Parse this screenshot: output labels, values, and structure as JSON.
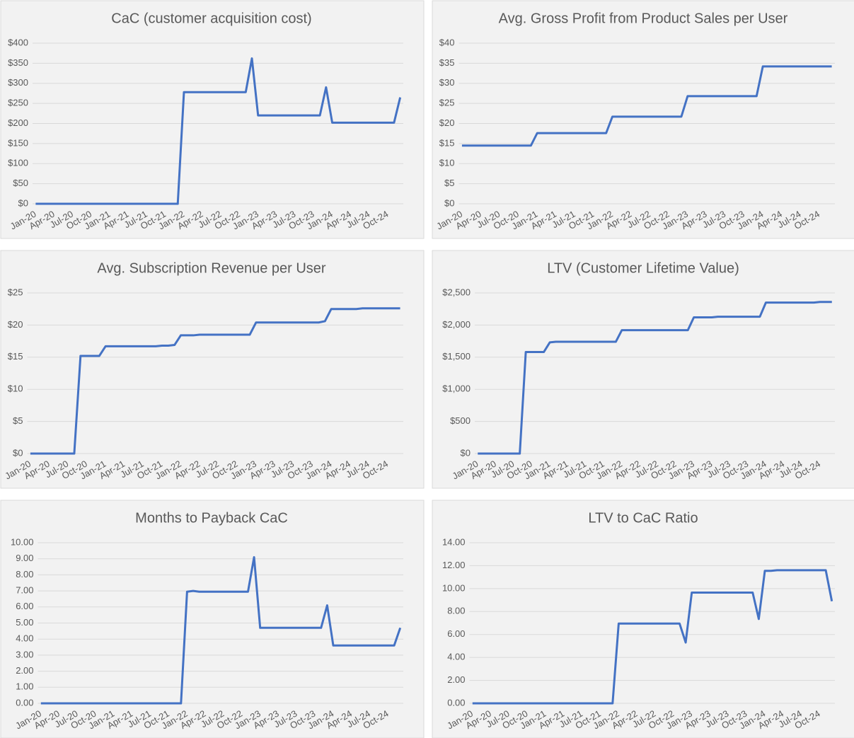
{
  "chart_data": [
    {
      "type": "line",
      "title": "CaC (customer acquisition cost)",
      "color": "#4472c4",
      "grid": true,
      "categories": [
        "Jan-20",
        null,
        null,
        "Apr-20",
        null,
        null,
        "Jul-20",
        null,
        null,
        "Oct-20",
        null,
        null,
        "Jan-21",
        null,
        null,
        "Apr-21",
        null,
        null,
        "Jul-21",
        null,
        null,
        "Oct-21",
        null,
        null,
        "Jan-22",
        null,
        null,
        "Apr-22",
        null,
        null,
        "Jul-22",
        null,
        null,
        "Oct-22",
        null,
        null,
        "Jan-23",
        null,
        null,
        "Apr-23",
        null,
        null,
        "Jul-23",
        null,
        null,
        "Oct-23",
        null,
        null,
        "Jan-24",
        null,
        null,
        "Apr-24",
        null,
        null,
        "Jul-24",
        null,
        null,
        "Oct-24",
        null,
        null
      ],
      "values": [
        0,
        0,
        0,
        0,
        0,
        0,
        0,
        0,
        0,
        0,
        0,
        0,
        0,
        0,
        0,
        0,
        0,
        0,
        0,
        0,
        0,
        0,
        0,
        0,
        278,
        278,
        278,
        278,
        278,
        278,
        278,
        278,
        278,
        278,
        278,
        362,
        220,
        220,
        220,
        220,
        220,
        220,
        220,
        220,
        220,
        220,
        220,
        290,
        202,
        202,
        202,
        202,
        202,
        202,
        202,
        202,
        202,
        202,
        202,
        265
      ],
      "ylim": [
        0,
        400
      ],
      "yticks": [
        {
          "value": 0,
          "label": "$0"
        },
        {
          "value": 50,
          "label": "$50"
        },
        {
          "value": 100,
          "label": "$100"
        },
        {
          "value": 150,
          "label": "$150"
        },
        {
          "value": 200,
          "label": "$200"
        },
        {
          "value": 250,
          "label": "$250"
        },
        {
          "value": 300,
          "label": "$300"
        },
        {
          "value": 350,
          "label": "$350"
        },
        {
          "value": 400,
          "label": "$400"
        }
      ]
    },
    {
      "type": "line",
      "title": "Avg. Gross Profit from Product Sales per User",
      "color": "#4472c4",
      "grid": true,
      "categories": [
        "Jan-20",
        null,
        null,
        "Apr-20",
        null,
        null,
        "Jul-20",
        null,
        null,
        "Oct-20",
        null,
        null,
        "Jan-21",
        null,
        null,
        "Apr-21",
        null,
        null,
        "Jul-21",
        null,
        null,
        "Oct-21",
        null,
        null,
        "Jan-22",
        null,
        null,
        "Apr-22",
        null,
        null,
        "Jul-22",
        null,
        null,
        "Oct-22",
        null,
        null,
        "Jan-23",
        null,
        null,
        "Apr-23",
        null,
        null,
        "Jul-23",
        null,
        null,
        "Oct-23",
        null,
        null,
        "Jan-24",
        null,
        null,
        "Apr-24",
        null,
        null,
        "Jul-24",
        null,
        null,
        "Oct-24",
        null,
        null
      ],
      "values": [
        14.5,
        14.5,
        14.5,
        14.5,
        14.5,
        14.5,
        14.5,
        14.5,
        14.5,
        14.5,
        14.5,
        14.5,
        17.6,
        17.6,
        17.6,
        17.6,
        17.6,
        17.6,
        17.6,
        17.6,
        17.6,
        17.6,
        17.6,
        17.6,
        21.7,
        21.7,
        21.7,
        21.7,
        21.7,
        21.7,
        21.7,
        21.7,
        21.7,
        21.7,
        21.7,
        21.7,
        26.8,
        26.8,
        26.8,
        26.8,
        26.8,
        26.8,
        26.8,
        26.8,
        26.8,
        26.8,
        26.8,
        26.8,
        34.2,
        34.2,
        34.2,
        34.2,
        34.2,
        34.2,
        34.2,
        34.2,
        34.2,
        34.2,
        34.2,
        34.2
      ],
      "ylim": [
        0,
        40
      ],
      "yticks": [
        {
          "value": 0,
          "label": "$0"
        },
        {
          "value": 5,
          "label": "$5"
        },
        {
          "value": 10,
          "label": "$10"
        },
        {
          "value": 15,
          "label": "$15"
        },
        {
          "value": 20,
          "label": "$20"
        },
        {
          "value": 25,
          "label": "$25"
        },
        {
          "value": 30,
          "label": "$30"
        },
        {
          "value": 35,
          "label": "$35"
        },
        {
          "value": 40,
          "label": "$40"
        }
      ]
    },
    {
      "type": "line",
      "title": "Avg. Subscription Revenue per User",
      "color": "#4472c4",
      "grid": true,
      "categories": [
        "Jan-20",
        null,
        null,
        "Apr-20",
        null,
        null,
        "Jul-20",
        null,
        null,
        "Oct-20",
        null,
        null,
        "Jan-21",
        null,
        null,
        "Apr-21",
        null,
        null,
        "Jul-21",
        null,
        null,
        "Oct-21",
        null,
        null,
        "Jan-22",
        null,
        null,
        "Apr-22",
        null,
        null,
        "Jul-22",
        null,
        null,
        "Oct-22",
        null,
        null,
        "Jan-23",
        null,
        null,
        "Apr-23",
        null,
        null,
        "Jul-23",
        null,
        null,
        "Oct-23",
        null,
        null,
        "Jan-24",
        null,
        null,
        "Apr-24",
        null,
        null,
        "Jul-24",
        null,
        null,
        "Oct-24",
        null,
        null
      ],
      "values": [
        0,
        0,
        0,
        0,
        0,
        0,
        0,
        0,
        15.2,
        15.2,
        15.2,
        15.2,
        16.7,
        16.7,
        16.7,
        16.7,
        16.7,
        16.7,
        16.7,
        16.7,
        16.7,
        16.8,
        16.8,
        16.9,
        18.4,
        18.4,
        18.4,
        18.5,
        18.5,
        18.5,
        18.5,
        18.5,
        18.5,
        18.5,
        18.5,
        18.5,
        20.4,
        20.4,
        20.4,
        20.4,
        20.4,
        20.4,
        20.4,
        20.4,
        20.4,
        20.4,
        20.4,
        20.6,
        22.5,
        22.5,
        22.5,
        22.5,
        22.5,
        22.6,
        22.6,
        22.6,
        22.6,
        22.6,
        22.6,
        22.6
      ],
      "ylim": [
        0,
        25
      ],
      "yticks": [
        {
          "value": 0,
          "label": "$0"
        },
        {
          "value": 5,
          "label": "$5"
        },
        {
          "value": 10,
          "label": "$10"
        },
        {
          "value": 15,
          "label": "$15"
        },
        {
          "value": 20,
          "label": "$20"
        },
        {
          "value": 25,
          "label": "$25"
        }
      ]
    },
    {
      "type": "line",
      "title": "LTV (Customer Lifetime Value)",
      "color": "#4472c4",
      "grid": true,
      "categories": [
        "Jan-20",
        null,
        null,
        "Apr-20",
        null,
        null,
        "Jul-20",
        null,
        null,
        "Oct-20",
        null,
        null,
        "Jan-21",
        null,
        null,
        "Apr-21",
        null,
        null,
        "Jul-21",
        null,
        null,
        "Oct-21",
        null,
        null,
        "Jan-22",
        null,
        null,
        "Apr-22",
        null,
        null,
        "Jul-22",
        null,
        null,
        "Oct-22",
        null,
        null,
        "Jan-23",
        null,
        null,
        "Apr-23",
        null,
        null,
        "Jul-23",
        null,
        null,
        "Oct-23",
        null,
        null,
        "Jan-24",
        null,
        null,
        "Apr-24",
        null,
        null,
        "Jul-24",
        null,
        null,
        "Oct-24",
        null,
        null
      ],
      "values": [
        0,
        0,
        0,
        0,
        0,
        0,
        0,
        0,
        1580,
        1580,
        1580,
        1580,
        1730,
        1740,
        1740,
        1740,
        1740,
        1740,
        1740,
        1740,
        1740,
        1740,
        1740,
        1740,
        1920,
        1920,
        1920,
        1920,
        1920,
        1920,
        1920,
        1920,
        1920,
        1920,
        1920,
        1920,
        2120,
        2120,
        2120,
        2120,
        2130,
        2130,
        2130,
        2130,
        2130,
        2130,
        2130,
        2130,
        2350,
        2350,
        2350,
        2350,
        2350,
        2350,
        2350,
        2350,
        2350,
        2360,
        2360,
        2360
      ],
      "ylim": [
        0,
        2500
      ],
      "yticks": [
        {
          "value": 0,
          "label": "$0"
        },
        {
          "value": 500,
          "label": "$500"
        },
        {
          "value": 1000,
          "label": "$1,000"
        },
        {
          "value": 1500,
          "label": "$1,500"
        },
        {
          "value": 2000,
          "label": "$2,000"
        },
        {
          "value": 2500,
          "label": "$2,500"
        }
      ]
    },
    {
      "type": "line",
      "title": "Months to Payback CaC",
      "color": "#4472c4",
      "grid": true,
      "categories": [
        "Jan-20",
        null,
        null,
        "Apr-20",
        null,
        null,
        "Jul-20",
        null,
        null,
        "Oct-20",
        null,
        null,
        "Jan-21",
        null,
        null,
        "Apr-21",
        null,
        null,
        "Jul-21",
        null,
        null,
        "Oct-21",
        null,
        null,
        "Jan-22",
        null,
        null,
        "Apr-22",
        null,
        null,
        "Jul-22",
        null,
        null,
        "Oct-22",
        null,
        null,
        "Jan-23",
        null,
        null,
        "Apr-23",
        null,
        null,
        "Jul-23",
        null,
        null,
        "Oct-23",
        null,
        null,
        "Jan-24",
        null,
        null,
        "Apr-24",
        null,
        null,
        "Jul-24",
        null,
        null,
        "Oct-24",
        null,
        null
      ],
      "values": [
        0,
        0,
        0,
        0,
        0,
        0,
        0,
        0,
        0,
        0,
        0,
        0,
        0,
        0,
        0,
        0,
        0,
        0,
        0,
        0,
        0,
        0,
        0,
        0,
        6.95,
        7.0,
        6.95,
        6.95,
        6.95,
        6.95,
        6.95,
        6.95,
        6.95,
        6.95,
        6.95,
        9.1,
        4.7,
        4.7,
        4.7,
        4.7,
        4.7,
        4.7,
        4.7,
        4.7,
        4.7,
        4.7,
        4.7,
        6.1,
        3.6,
        3.6,
        3.6,
        3.6,
        3.6,
        3.6,
        3.6,
        3.6,
        3.6,
        3.6,
        3.6,
        4.7
      ],
      "ylim": [
        0,
        10
      ],
      "yticks": [
        {
          "value": 0,
          "label": "0.00"
        },
        {
          "value": 1,
          "label": "1.00"
        },
        {
          "value": 2,
          "label": "2.00"
        },
        {
          "value": 3,
          "label": "3.00"
        },
        {
          "value": 4,
          "label": "4.00"
        },
        {
          "value": 5,
          "label": "5.00"
        },
        {
          "value": 6,
          "label": "6.00"
        },
        {
          "value": 7,
          "label": "7.00"
        },
        {
          "value": 8,
          "label": "8.00"
        },
        {
          "value": 9,
          "label": "9.00"
        },
        {
          "value": 10,
          "label": "10.00"
        }
      ]
    },
    {
      "type": "line",
      "title": "LTV to CaC Ratio",
      "color": "#4472c4",
      "grid": true,
      "categories": [
        "Jan-20",
        null,
        null,
        "Apr-20",
        null,
        null,
        "Jul-20",
        null,
        null,
        "Oct-20",
        null,
        null,
        "Jan-21",
        null,
        null,
        "Apr-21",
        null,
        null,
        "Jul-21",
        null,
        null,
        "Oct-21",
        null,
        null,
        "Jan-22",
        null,
        null,
        "Apr-22",
        null,
        null,
        "Jul-22",
        null,
        null,
        "Oct-22",
        null,
        null,
        "Jan-23",
        null,
        null,
        "Apr-23",
        null,
        null,
        "Jul-23",
        null,
        null,
        "Oct-23",
        null,
        null,
        "Jan-24",
        null,
        null,
        "Apr-24",
        null,
        null,
        "Jul-24",
        null,
        null,
        "Oct-24",
        null,
        null
      ],
      "values": [
        0,
        0,
        0,
        0,
        0,
        0,
        0,
        0,
        0,
        0,
        0,
        0,
        0,
        0,
        0,
        0,
        0,
        0,
        0,
        0,
        0,
        0,
        0,
        0,
        6.95,
        6.95,
        6.95,
        6.95,
        6.95,
        6.95,
        6.95,
        6.95,
        6.95,
        6.95,
        6.95,
        5.3,
        9.65,
        9.65,
        9.65,
        9.65,
        9.65,
        9.65,
        9.65,
        9.65,
        9.65,
        9.65,
        9.65,
        7.35,
        11.55,
        11.55,
        11.6,
        11.6,
        11.6,
        11.6,
        11.6,
        11.6,
        11.6,
        11.6,
        11.6,
        8.9
      ],
      "ylim": [
        0,
        14
      ],
      "yticks": [
        {
          "value": 0,
          "label": "0.00"
        },
        {
          "value": 2,
          "label": "2.00"
        },
        {
          "value": 4,
          "label": "4.00"
        },
        {
          "value": 6,
          "label": "6.00"
        },
        {
          "value": 8,
          "label": "8.00"
        },
        {
          "value": 10,
          "label": "10.00"
        },
        {
          "value": 12,
          "label": "12.00"
        },
        {
          "value": 14,
          "label": "14.00"
        }
      ]
    }
  ]
}
